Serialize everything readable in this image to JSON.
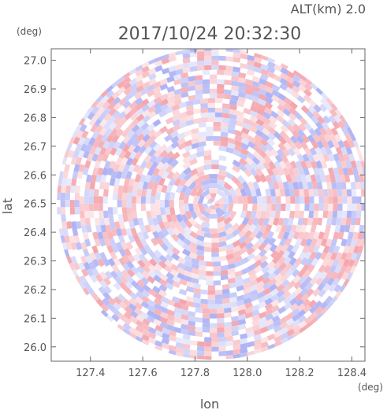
{
  "header": {
    "altitude": "ALT(km) 2.0",
    "timestamp": "2017/10/24 20:32:30"
  },
  "chart_data": {
    "type": "heatmap",
    "title": "2017/10/24 20:32:30",
    "subtitle": "ALT(km) 2.0",
    "xlabel": "lon",
    "ylabel": "lat",
    "xunit": "(deg)",
    "yunit": "(deg)",
    "xlim": [
      127.25,
      128.45
    ],
    "ylim": [
      25.95,
      27.04
    ],
    "xticks": [
      "127.4",
      "127.6",
      "127.8",
      "128.0",
      "128.2",
      "128.4"
    ],
    "xtick_values": [
      127.4,
      127.6,
      127.8,
      128.0,
      128.2,
      128.4
    ],
    "yticks": [
      "26.0",
      "26.1",
      "26.2",
      "26.3",
      "26.4",
      "26.5",
      "26.6",
      "26.7",
      "26.8",
      "26.9",
      "27.0"
    ],
    "ytick_values": [
      26.0,
      26.1,
      26.2,
      26.3,
      26.4,
      26.5,
      26.6,
      26.7,
      26.8,
      26.9,
      27.0
    ],
    "field": {
      "center": [
        127.87,
        26.5
      ],
      "radius_lat": 0.545,
      "colors": {
        "positive": "#f4a0a8",
        "negative": "#a8aef4",
        "neutral": "#ffffff"
      }
    },
    "grid": false
  }
}
